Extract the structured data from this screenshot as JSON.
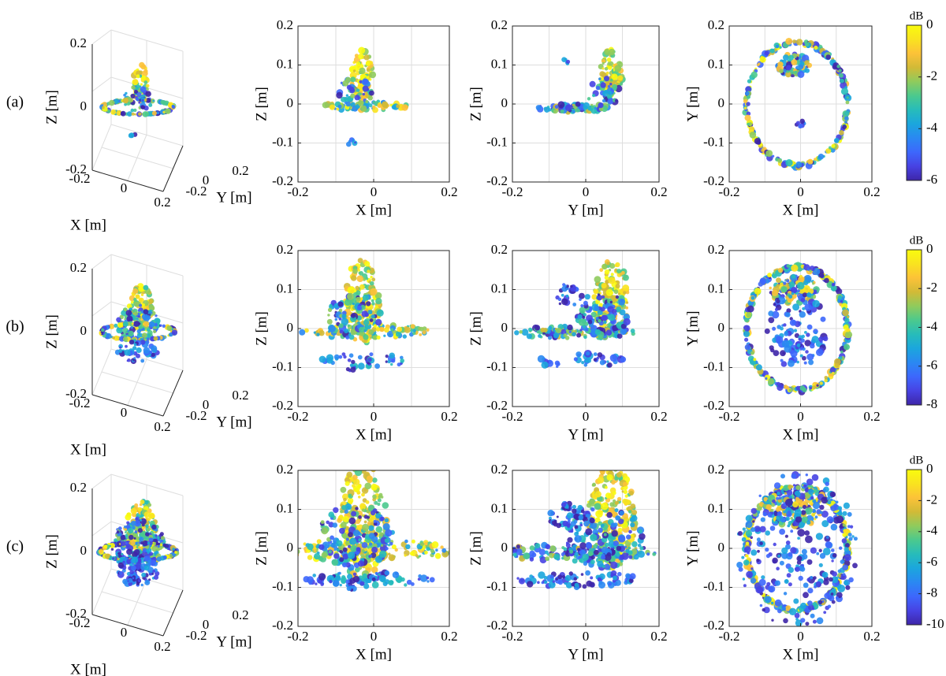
{
  "figure": {
    "row_labels": [
      "(a)",
      "(b)",
      "(c)"
    ],
    "colorbar_unit": "dB",
    "colormap": [
      "#3e26a8",
      "#4742e3",
      "#3d67fc",
      "#2a88f2",
      "#1ba6dd",
      "#27bcba",
      "#4bc98e",
      "#8fcb5d",
      "#d1ba37",
      "#fcc238",
      "#f9e31f",
      "#f9fb0e"
    ],
    "axis_color": "#262626",
    "grid_color": "#dedede"
  },
  "chart_data": [
    {
      "type": "scatter",
      "row": "(a)",
      "view": "3d",
      "xlabel": "X [m]",
      "ylabel": "Y [m]",
      "zlabel": "Z [m]",
      "x_ticks": [
        "-0.2",
        "0",
        "0.2"
      ],
      "y_ticks": [
        "-0.2",
        "0",
        "0.2"
      ],
      "z_ticks": [
        "-0.2",
        "0",
        "0.2"
      ],
      "xlim": [
        -0.2,
        0.2
      ],
      "ylim": [
        -0.2,
        0.2
      ],
      "zlim": [
        -0.2,
        0.2
      ],
      "grid": true
    },
    {
      "type": "scatter",
      "row": "(a)",
      "view": "xz",
      "xlabel": "X [m]",
      "ylabel": "Z [m]",
      "x_ticks": [
        "-0.2",
        "0",
        "0.2"
      ],
      "y_ticks": [
        "0.2",
        "0.1",
        "0",
        "-0.1",
        "-0.2"
      ],
      "xlim": [
        -0.2,
        0.2
      ],
      "ylim": [
        -0.2,
        0.2
      ],
      "grid": true
    },
    {
      "type": "scatter",
      "row": "(a)",
      "view": "yz",
      "xlabel": "Y [m]",
      "ylabel": "Z [m]",
      "x_ticks": [
        "-0.2",
        "0",
        "0.2"
      ],
      "y_ticks": [
        "0.2",
        "0.1",
        "0",
        "-0.1",
        "-0.2"
      ],
      "xlim": [
        -0.2,
        0.2
      ],
      "ylim": [
        -0.2,
        0.2
      ],
      "grid": true
    },
    {
      "type": "scatter",
      "row": "(a)",
      "view": "xy",
      "xlabel": "X [m]",
      "ylabel": "Y [m]",
      "x_ticks": [
        "-0.2",
        "0",
        "0.2"
      ],
      "y_ticks": [
        "0.2",
        "0.1",
        "0",
        "-0.1",
        "-0.2"
      ],
      "xlim": [
        -0.2,
        0.2
      ],
      "ylim": [
        -0.2,
        0.2
      ],
      "grid": true
    },
    {
      "type": "colorbar",
      "row": "(a)",
      "title": "dB",
      "range": [
        -6,
        0
      ],
      "tick_values": [
        0,
        -2,
        -4,
        -6
      ],
      "ticks": [
        "0",
        "-2",
        "-4",
        "-6"
      ]
    },
    {
      "type": "scatter",
      "row": "(b)",
      "view": "3d",
      "xlabel": "X [m]",
      "ylabel": "Y [m]",
      "zlabel": "Z [m]",
      "x_ticks": [
        "-0.2",
        "0",
        "0.2"
      ],
      "y_ticks": [
        "-0.2",
        "0",
        "0.2"
      ],
      "z_ticks": [
        "-0.2",
        "0",
        "0.2"
      ],
      "xlim": [
        -0.2,
        0.2
      ],
      "ylim": [
        -0.2,
        0.2
      ],
      "zlim": [
        -0.2,
        0.2
      ],
      "grid": true
    },
    {
      "type": "scatter",
      "row": "(b)",
      "view": "xz",
      "xlabel": "X [m]",
      "ylabel": "Z [m]",
      "x_ticks": [
        "-0.2",
        "0",
        "0.2"
      ],
      "y_ticks": [
        "0.2",
        "0.1",
        "0",
        "-0.1",
        "-0.2"
      ],
      "xlim": [
        -0.2,
        0.2
      ],
      "ylim": [
        -0.2,
        0.2
      ],
      "grid": true
    },
    {
      "type": "scatter",
      "row": "(b)",
      "view": "yz",
      "xlabel": "Y [m]",
      "ylabel": "Z [m]",
      "x_ticks": [
        "-0.2",
        "0",
        "0.2"
      ],
      "y_ticks": [
        "0.2",
        "0.1",
        "0",
        "-0.1",
        "-0.2"
      ],
      "xlim": [
        -0.2,
        0.2
      ],
      "ylim": [
        -0.2,
        0.2
      ],
      "grid": true
    },
    {
      "type": "scatter",
      "row": "(b)",
      "view": "xy",
      "xlabel": "X [m]",
      "ylabel": "Y [m]",
      "x_ticks": [
        "-0.2",
        "0",
        "0.2"
      ],
      "y_ticks": [
        "0.2",
        "0.1",
        "0",
        "-0.1",
        "-0.2"
      ],
      "xlim": [
        -0.2,
        0.2
      ],
      "ylim": [
        -0.2,
        0.2
      ],
      "grid": true
    },
    {
      "type": "colorbar",
      "row": "(b)",
      "title": "dB",
      "range": [
        -8,
        0
      ],
      "tick_values": [
        0,
        -2,
        -4,
        -6,
        -8
      ],
      "ticks": [
        "0",
        "-2",
        "-4",
        "-6",
        "-8"
      ]
    },
    {
      "type": "scatter",
      "row": "(c)",
      "view": "3d",
      "xlabel": "X [m]",
      "ylabel": "Y [m]",
      "zlabel": "Z [m]",
      "x_ticks": [
        "-0.2",
        "0",
        "0.2"
      ],
      "y_ticks": [
        "-0.2",
        "0",
        "0.2"
      ],
      "z_ticks": [
        "-0.2",
        "0",
        "0.2"
      ],
      "xlim": [
        -0.2,
        0.2
      ],
      "ylim": [
        -0.2,
        0.2
      ],
      "zlim": [
        -0.2,
        0.2
      ],
      "grid": true
    },
    {
      "type": "scatter",
      "row": "(c)",
      "view": "xz",
      "xlabel": "X [m]",
      "ylabel": "Z [m]",
      "x_ticks": [
        "-0.2",
        "0",
        "0.2"
      ],
      "y_ticks": [
        "0.2",
        "0.1",
        "0",
        "-0.1",
        "-0.2"
      ],
      "xlim": [
        -0.2,
        0.2
      ],
      "ylim": [
        -0.2,
        0.2
      ],
      "grid": true
    },
    {
      "type": "scatter",
      "row": "(c)",
      "view": "yz",
      "xlabel": "Y [m]",
      "ylabel": "Z [m]",
      "x_ticks": [
        "-0.2",
        "0",
        "0.2"
      ],
      "y_ticks": [
        "0.2",
        "0.1",
        "0",
        "-0.1",
        "-0.2"
      ],
      "xlim": [
        -0.2,
        0.2
      ],
      "ylim": [
        -0.2,
        0.2
      ],
      "grid": true
    },
    {
      "type": "scatter",
      "row": "(c)",
      "view": "xy",
      "xlabel": "X [m]",
      "ylabel": "Y [m]",
      "x_ticks": [
        "-0.2",
        "0",
        "0.2"
      ],
      "y_ticks": [
        "0.2",
        "0.1",
        "0",
        "-0.1",
        "-0.2"
      ],
      "xlim": [
        -0.2,
        0.2
      ],
      "ylim": [
        -0.2,
        0.2
      ],
      "grid": true
    },
    {
      "type": "colorbar",
      "row": "(c)",
      "title": "dB",
      "range": [
        -10,
        0
      ],
      "tick_values": [
        0,
        -2,
        -4,
        -6,
        -8,
        -10
      ],
      "ticks": [
        "0",
        "-2",
        "-4",
        "-6",
        "-8",
        "-10"
      ]
    }
  ]
}
